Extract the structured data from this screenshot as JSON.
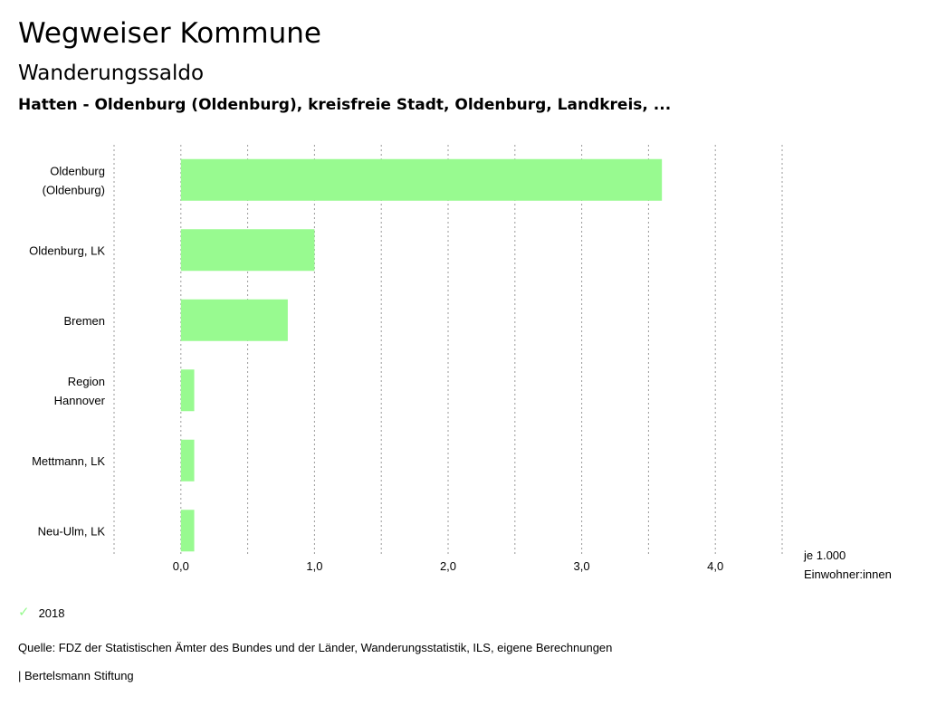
{
  "header": {
    "title": "Wegweiser Kommune",
    "subtitle": "Wanderungssaldo",
    "regions": "Hatten - Oldenburg (Oldenburg), kreisfreie Stadt, Oldenburg, Landkreis, ..."
  },
  "chart_data": {
    "type": "bar",
    "orientation": "horizontal",
    "categories": [
      [
        "Oldenburg",
        "(Oldenburg)"
      ],
      [
        "Oldenburg, LK"
      ],
      [
        "Bremen"
      ],
      [
        "Region",
        "Hannover"
      ],
      [
        "Mettmann, LK"
      ],
      [
        "Neu-Ulm, LK"
      ]
    ],
    "series": [
      {
        "name": "2018",
        "values": [
          3.6,
          1.0,
          0.8,
          0.1,
          0.1,
          0.1
        ],
        "color": "#98fa90"
      }
    ],
    "xlim": [
      -0.5,
      4.5
    ],
    "xticks": [
      0,
      1,
      2,
      3,
      4
    ],
    "xtick_labels": [
      "0,0",
      "1,0",
      "2,0",
      "3,0",
      "4,0"
    ],
    "gridlines": [
      -0.5,
      0,
      0.5,
      1,
      1.5,
      2,
      2.5,
      3,
      3.5,
      4,
      4.5
    ],
    "unit_label": [
      "je 1.000",
      "Einwohner:innen"
    ],
    "grid": true,
    "legend_position": "bottom-left"
  },
  "legend": {
    "label": "2018",
    "check_icon": "✓",
    "color": "#98fa90"
  },
  "footer": {
    "source": "Quelle: FDZ der Statistischen Ämter des Bundes und der Länder, Wanderungsstatistik, ILS, eigene Berechnungen",
    "publisher": "| Bertelsmann Stiftung"
  }
}
